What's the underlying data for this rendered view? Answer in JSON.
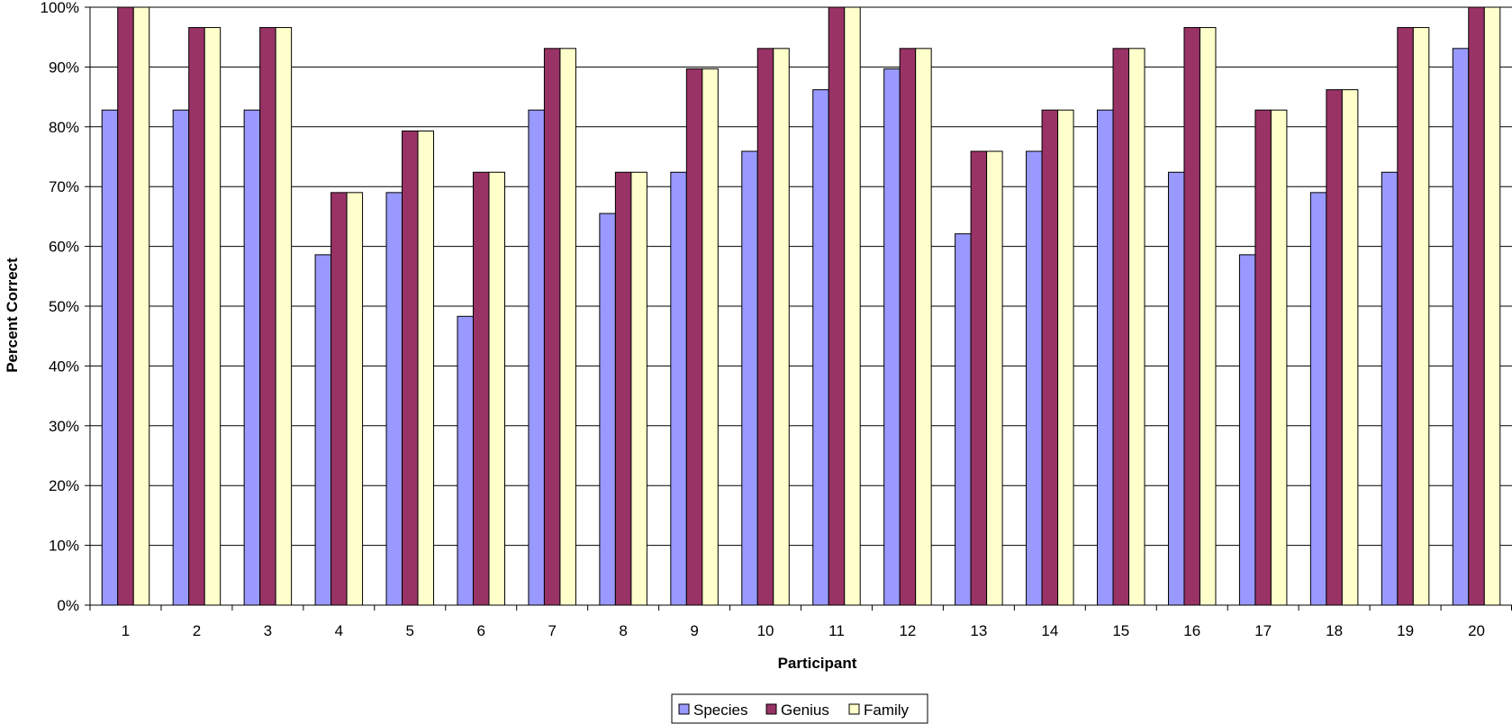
{
  "chart_data": {
    "type": "bar",
    "title": "",
    "xlabel": "Participant",
    "ylabel": "Percent Correct",
    "categories": [
      "1",
      "2",
      "3",
      "4",
      "5",
      "6",
      "7",
      "8",
      "9",
      "10",
      "11",
      "12",
      "13",
      "14",
      "15",
      "16",
      "17",
      "18",
      "19",
      "20"
    ],
    "ylim": [
      0,
      100
    ],
    "yticks": [
      0,
      10,
      20,
      30,
      40,
      50,
      60,
      70,
      80,
      90,
      100
    ],
    "ytick_labels": [
      "0%",
      "10%",
      "20%",
      "30%",
      "40%",
      "50%",
      "60%",
      "70%",
      "80%",
      "90%",
      "100%"
    ],
    "grid": "horizontal",
    "legend_position": "bottom",
    "series": [
      {
        "name": "Species",
        "color": "#9999ff",
        "values": [
          82.8,
          82.8,
          82.8,
          58.6,
          69.0,
          48.3,
          82.8,
          65.5,
          72.4,
          75.9,
          86.2,
          89.7,
          62.1,
          75.9,
          82.8,
          72.4,
          58.6,
          69.0,
          72.4,
          93.1
        ]
      },
      {
        "name": "Genius",
        "color": "#993366",
        "values": [
          100,
          96.6,
          96.6,
          69.0,
          79.3,
          72.4,
          93.1,
          72.4,
          89.7,
          93.1,
          100,
          93.1,
          75.9,
          82.8,
          93.1,
          96.6,
          82.8,
          86.2,
          96.6,
          100
        ]
      },
      {
        "name": "Family",
        "color": "#ffffcc",
        "values": [
          100,
          96.6,
          96.6,
          69.0,
          79.3,
          72.4,
          93.1,
          72.4,
          89.7,
          93.1,
          100,
          93.1,
          75.9,
          82.8,
          93.1,
          96.6,
          82.8,
          86.2,
          96.6,
          100
        ]
      }
    ]
  }
}
